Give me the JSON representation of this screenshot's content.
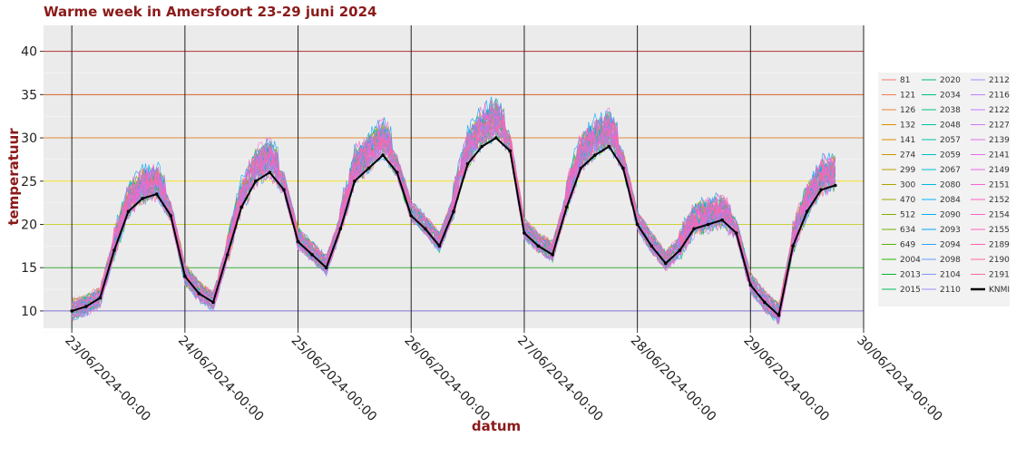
{
  "chart_data": {
    "type": "line",
    "title": "Warme week in Amersfoort 23-29 juni 2024",
    "xlabel": "datum",
    "ylabel": "temperatuur",
    "xlim": [
      "2024-06-22T18:00",
      "2024-06-30T00:00"
    ],
    "ylim": [
      8,
      43
    ],
    "x_ticks": [
      "23/06/2024-00:00",
      "24/06/2024-00:00",
      "25/06/2024-00:00",
      "26/06/2024-00:00",
      "27/06/2024-00:00",
      "28/06/2024-00:00",
      "29/06/2024-00:00",
      "30/06/2024-00:00"
    ],
    "y_ticks": [
      10,
      15,
      20,
      25,
      30,
      35,
      40
    ],
    "grid": true,
    "legend_position": "right",
    "reference_lines": [
      {
        "y": 10,
        "color": "#7b6fd0"
      },
      {
        "y": 15,
        "color": "#3aa83a"
      },
      {
        "y": 20,
        "color": "#c8d23a"
      },
      {
        "y": 25,
        "color": "#f0e020"
      },
      {
        "y": 30,
        "color": "#e08a3a"
      },
      {
        "y": 35,
        "color": "#d0602a"
      },
      {
        "y": 40,
        "color": "#b03030"
      }
    ],
    "series": [
      {
        "name": "81",
        "color": "#F8766D"
      },
      {
        "name": "121",
        "color": "#F27D52"
      },
      {
        "name": "126",
        "color": "#EA8331"
      },
      {
        "name": "132",
        "color": "#E08B00"
      },
      {
        "name": "141",
        "color": "#D89000"
      },
      {
        "name": "274",
        "color": "#C99800"
      },
      {
        "name": "299",
        "color": "#BB9D00"
      },
      {
        "name": "300",
        "color": "#ABA300"
      },
      {
        "name": "470",
        "color": "#9AA800"
      },
      {
        "name": "512",
        "color": "#86AC00"
      },
      {
        "name": "634",
        "color": "#6FB000"
      },
      {
        "name": "649",
        "color": "#53B400"
      },
      {
        "name": "2004",
        "color": "#2AB700"
      },
      {
        "name": "2013",
        "color": "#00BA38"
      },
      {
        "name": "2015",
        "color": "#00BC59"
      },
      {
        "name": "2020",
        "color": "#00BE6C"
      },
      {
        "name": "2034",
        "color": "#00C07B"
      },
      {
        "name": "2038",
        "color": "#00C08D"
      },
      {
        "name": "2048",
        "color": "#00C19F"
      },
      {
        "name": "2057",
        "color": "#00C0AF"
      },
      {
        "name": "2059",
        "color": "#00BFC4"
      },
      {
        "name": "2067",
        "color": "#00BCD8"
      },
      {
        "name": "2080",
        "color": "#00B8E7"
      },
      {
        "name": "2084",
        "color": "#00B4F0"
      },
      {
        "name": "2090",
        "color": "#00ADFA"
      },
      {
        "name": "2093",
        "color": "#00A5FF"
      },
      {
        "name": "2094",
        "color": "#35A2FF"
      },
      {
        "name": "2098",
        "color": "#619CFF"
      },
      {
        "name": "2104",
        "color": "#7F96FF"
      },
      {
        "name": "2110",
        "color": "#9590FF"
      },
      {
        "name": "2112",
        "color": "#AA88FF"
      },
      {
        "name": "2116",
        "color": "#BB81FF"
      },
      {
        "name": "2122",
        "color": "#C77CFF"
      },
      {
        "name": "2127",
        "color": "#D376F4"
      },
      {
        "name": "2139",
        "color": "#DE71E8"
      },
      {
        "name": "2141",
        "color": "#E76BF3"
      },
      {
        "name": "2149",
        "color": "#EE67E1"
      },
      {
        "name": "2151",
        "color": "#F564D4"
      },
      {
        "name": "2152",
        "color": "#FA62C3"
      },
      {
        "name": "2154",
        "color": "#FD61D1"
      },
      {
        "name": "2155",
        "color": "#FF62BC"
      },
      {
        "name": "2189",
        "color": "#FF65AD"
      },
      {
        "name": "2190",
        "color": "#FF6A98"
      },
      {
        "name": "2191",
        "color": "#FF6C91"
      },
      {
        "name": "KNMI",
        "color": "#000000",
        "bold": true,
        "x": [
          "2024-06-23T00:00",
          "2024-06-23T03:00",
          "2024-06-23T06:00",
          "2024-06-23T09:00",
          "2024-06-23T12:00",
          "2024-06-23T15:00",
          "2024-06-23T18:00",
          "2024-06-23T21:00",
          "2024-06-24T00:00",
          "2024-06-24T03:00",
          "2024-06-24T06:00",
          "2024-06-24T09:00",
          "2024-06-24T12:00",
          "2024-06-24T15:00",
          "2024-06-24T18:00",
          "2024-06-24T21:00",
          "2024-06-25T00:00",
          "2024-06-25T03:00",
          "2024-06-25T06:00",
          "2024-06-25T09:00",
          "2024-06-25T12:00",
          "2024-06-25T15:00",
          "2024-06-25T18:00",
          "2024-06-25T21:00",
          "2024-06-26T00:00",
          "2024-06-26T03:00",
          "2024-06-26T06:00",
          "2024-06-26T09:00",
          "2024-06-26T12:00",
          "2024-06-26T15:00",
          "2024-06-26T18:00",
          "2024-06-26T21:00",
          "2024-06-27T00:00",
          "2024-06-27T03:00",
          "2024-06-27T06:00",
          "2024-06-27T09:00",
          "2024-06-27T12:00",
          "2024-06-27T15:00",
          "2024-06-27T18:00",
          "2024-06-27T21:00",
          "2024-06-28T00:00",
          "2024-06-28T03:00",
          "2024-06-28T06:00",
          "2024-06-28T09:00",
          "2024-06-28T12:00",
          "2024-06-28T15:00",
          "2024-06-28T18:00",
          "2024-06-28T21:00",
          "2024-06-29T00:00",
          "2024-06-29T03:00",
          "2024-06-29T06:00",
          "2024-06-29T09:00",
          "2024-06-29T12:00",
          "2024-06-29T15:00",
          "2024-06-29T18:00"
        ],
        "values": [
          10.0,
          10.5,
          11.5,
          17.0,
          21.5,
          23.0,
          23.5,
          21.0,
          14.0,
          12.0,
          11.0,
          16.5,
          22.0,
          25.0,
          26.0,
          24.0,
          18.0,
          16.5,
          15.0,
          19.5,
          25.0,
          26.5,
          28.0,
          26.0,
          21.0,
          19.5,
          17.5,
          21.5,
          27.0,
          29.0,
          30.0,
          28.5,
          19.0,
          17.5,
          16.5,
          22.0,
          26.5,
          28.0,
          29.0,
          26.5,
          20.0,
          17.5,
          15.5,
          17.0,
          19.5,
          20.0,
          20.5,
          19.0,
          13.0,
          11.0,
          9.5,
          17.5,
          21.5,
          24.0,
          24.5
        ]
      }
    ]
  }
}
